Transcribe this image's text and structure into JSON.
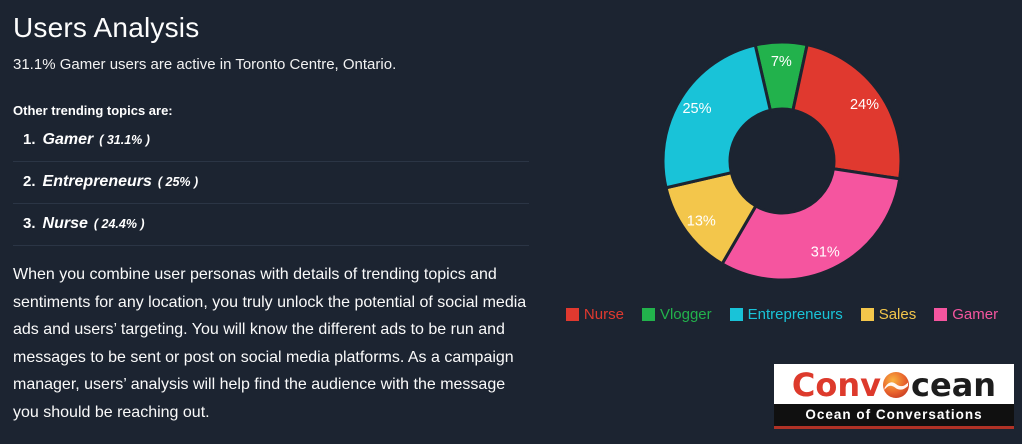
{
  "page": {
    "title": "Users Analysis",
    "subtitle": "31.1% Gamer users are active in Toronto Centre, Ontario.",
    "trending_heading": "Other trending topics are:",
    "trending": [
      {
        "rank": "1.",
        "name": "Gamer",
        "value": "( 31.1% )"
      },
      {
        "rank": "2.",
        "name": "Entrepreneurs",
        "value": "( 25% )"
      },
      {
        "rank": "3.",
        "name": "Nurse",
        "value": "( 24.4% )"
      }
    ],
    "description": "When you combine user personas with details of trending topics and sentiments for any location, you truly unlock the potential of social media ads and users’ targeting. You will know the different ads to be run and messages to be sent or post on social media platforms. As a campaign manager, users’ analysis will help find the audience with the message you should be reaching out."
  },
  "chart_data": {
    "type": "pie",
    "subtype": "donut",
    "title": "",
    "slices": [
      {
        "label": "Nurse",
        "value": 24,
        "display": "24%",
        "color": "#e0392f"
      },
      {
        "label": "Vlogger",
        "value": 7,
        "display": "7%",
        "color": "#22b24c"
      },
      {
        "label": "Entrepreneurs",
        "value": 25,
        "display": "25%",
        "color": "#19c3d8"
      },
      {
        "label": "Sales",
        "value": 13,
        "display": "13%",
        "color": "#f3c64b"
      },
      {
        "label": "Gamer",
        "value": 31,
        "display": "31%",
        "color": "#f5559f"
      }
    ],
    "draw_order": [
      "Vlogger",
      "Nurse",
      "Gamer",
      "Sales",
      "Entrepreneurs"
    ],
    "start_angle_deg": -13,
    "donut_hole_ratio": 0.44,
    "legend_position": "bottom",
    "label_position": "inside"
  },
  "colors": {
    "background": "#1c2431",
    "divider": "#2b3545",
    "slice_label_text": "#ffffff"
  },
  "logo": {
    "part1": "Conv",
    "part2": "cean",
    "tagline": "Ocean of Conversations"
  }
}
